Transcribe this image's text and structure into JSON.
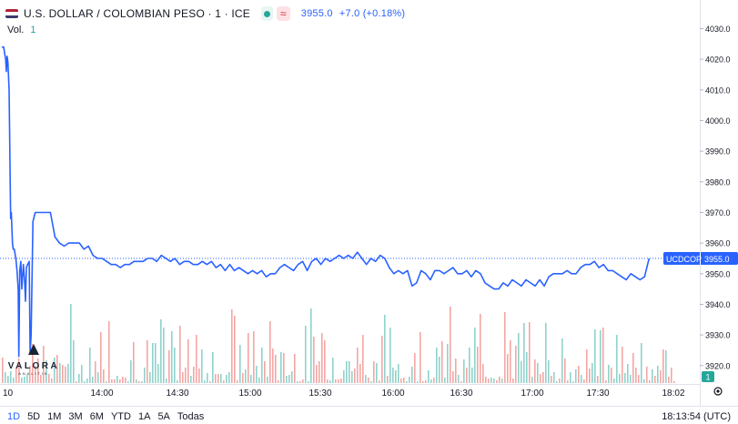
{
  "header": {
    "title": "U.S. DOLLAR / COLOMBIAN PESO · 1 · ICE",
    "approx_symbol": "≈",
    "price": "3955.0",
    "change": "+7.0 (+0.18%)"
  },
  "volume": {
    "label": "Vol.",
    "value": "1"
  },
  "watermark": {
    "name": "VALORA",
    "sub": "ANALITIK"
  },
  "price_tag": {
    "symbol": "UCDCOP",
    "value": "3955.0"
  },
  "volume_tag": "1",
  "colors": {
    "line": "#2962ff",
    "up": "#26a69a",
    "down": "#ef5350",
    "axis_text": "#131722",
    "grid": "#f0f3fa"
  },
  "icons": {
    "settings": "gear-icon",
    "live": "live-dot-icon"
  },
  "ranges": [
    "1D",
    "5D",
    "1M",
    "3M",
    "6M",
    "YTD",
    "1A",
    "5A",
    "Todas"
  ],
  "active_range": "1D",
  "clock": "18:13:54 (UTC)",
  "chart_data": {
    "type": "line",
    "title": "U.S. DOLLAR / COLOMBIAN PESO · 1 · ICE",
    "x_tick_labels": [
      "10",
      "14:00",
      "14:30",
      "15:00",
      "15:30",
      "16:00",
      "16:30",
      "17:00",
      "17:30",
      "18:02"
    ],
    "y_tick_labels": [
      "3920.0",
      "3930.0",
      "3940.0",
      "3950.0",
      "3960.0",
      "3970.0",
      "3980.0",
      "3990.0",
      "4000.0",
      "4010.0",
      "4020.0",
      "4030.0"
    ],
    "ylim": [
      3914,
      4034
    ],
    "x_minutes": [
      0,
      1.2,
      2.5,
      3,
      3.5,
      4,
      4.8,
      5.8,
      6.2,
      7,
      7.5,
      8.2,
      9.2,
      10,
      10.8,
      11.2,
      11.8,
      12.5,
      13.2,
      14.2,
      15,
      15.6,
      16.2,
      17,
      18,
      18.6,
      19.3,
      20.5,
      22,
      25,
      29,
      32,
      35,
      38,
      41,
      44,
      47,
      51,
      54,
      57,
      60,
      63,
      66,
      69,
      72,
      75,
      78,
      81,
      84,
      87,
      90,
      93,
      96,
      99,
      102,
      105,
      108,
      111,
      114,
      117,
      120,
      123,
      126,
      129,
      132,
      135,
      138,
      141,
      144,
      147,
      150,
      153,
      156,
      159,
      162,
      165,
      168,
      171,
      174,
      177,
      180,
      183,
      186,
      189,
      192,
      195,
      198,
      201,
      204,
      207,
      210,
      213,
      216,
      219,
      222,
      225,
      228,
      231,
      234,
      237,
      240,
      243,
      246,
      249,
      252,
      255,
      258,
      261,
      264,
      267,
      270,
      273,
      276,
      279,
      282,
      285,
      288,
      291,
      294,
      297,
      300,
      303,
      306,
      309,
      312,
      315,
      318,
      321,
      324,
      327,
      330,
      333,
      336,
      339,
      342,
      345,
      348,
      351,
      354,
      357,
      360,
      363,
      366,
      369,
      372,
      375,
      378,
      381,
      384,
      387,
      390,
      393,
      396,
      399,
      402,
      405,
      408,
      411,
      414,
      417,
      420,
      423,
      426,
      429,
      432,
      435,
      438,
      441,
      442
    ],
    "prices": [
      4024,
      4024,
      4020,
      4016,
      4021,
      4019,
      4010,
      3968,
      3970,
      3960,
      3958,
      3958,
      3955,
      3951,
      3945,
      3923,
      3951,
      3954,
      3945,
      3953,
      3948,
      3941,
      3952,
      3953,
      3954,
      3924,
      3930,
      3967,
      3970,
      3970,
      3970,
      3970,
      3962,
      3960,
      3959,
      3960,
      3960,
      3960,
      3958,
      3959,
      3956,
      3955,
      3955,
      3954,
      3953,
      3953,
      3952,
      3953,
      3953,
      3954,
      3954,
      3954,
      3955,
      3955,
      3954,
      3956,
      3955,
      3954,
      3955,
      3953,
      3954,
      3954,
      3953,
      3953,
      3954,
      3953,
      3954,
      3952,
      3953,
      3951,
      3953,
      3951,
      3952,
      3951,
      3950,
      3951,
      3950,
      3951,
      3949,
      3950,
      3950,
      3952,
      3953,
      3952,
      3951,
      3953,
      3954,
      3951,
      3954,
      3955,
      3953,
      3955,
      3954,
      3955,
      3956,
      3955,
      3956,
      3955,
      3957,
      3955,
      3953,
      3955,
      3954,
      3956,
      3955,
      3952,
      3950,
      3951,
      3950,
      3951,
      3946,
      3947,
      3951,
      3950,
      3948,
      3951,
      3951,
      3950,
      3951,
      3952,
      3950,
      3950,
      3951,
      3949,
      3951,
      3950,
      3947,
      3946,
      3945,
      3945,
      3947,
      3946,
      3948,
      3947,
      3946,
      3948,
      3947,
      3946,
      3948,
      3946,
      3949,
      3950,
      3950,
      3950,
      3951,
      3950,
      3950,
      3952,
      3953,
      3953,
      3954,
      3952,
      3953,
      3951,
      3951,
      3950,
      3949,
      3948,
      3950,
      3949,
      3948,
      3949,
      3955
    ],
    "volume_series_note": "volume bars colored green (up) / red (down)",
    "last_price": 3955.0
  }
}
